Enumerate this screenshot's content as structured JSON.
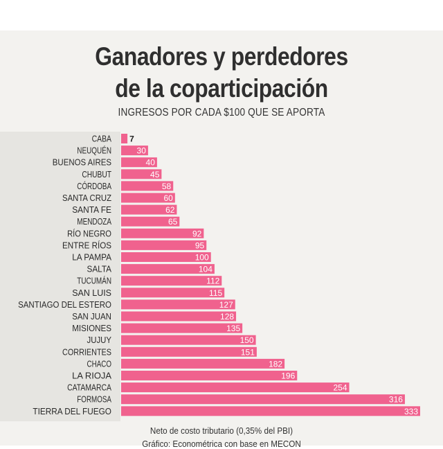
{
  "title_line1": "Ganadores y perdedores",
  "title_line2": "de la coparticipación",
  "subtitle": "INGRESOS POR CADA $100 QUE SE APORTA",
  "footnote": "Neto de costo tributario (0,35% del PBI)",
  "source": "Gráfico: Econométrica con base en MECON",
  "colors": {
    "bar": "#f0628e",
    "label_inside": "#ffffff",
    "label_outside": "#222222"
  },
  "chart_data": {
    "type": "bar",
    "orientation": "horizontal",
    "title": "Ganadores y perdedores de la coparticipación",
    "subtitle": "INGRESOS POR CADA $100 QUE SE APORTA",
    "categories": [
      "CABA",
      "NEUQUÉN",
      "BUENOS AIRES",
      "CHUBUT",
      "CÓRDOBA",
      "SANTA CRUZ",
      "SANTA FE",
      "MENDOZA",
      "RÍO NEGRO",
      "ENTRE RÍOS",
      "LA PAMPA",
      "SALTA",
      "TUCUMÁN",
      "SAN LUIS",
      "SANTIAGO DEL ESTERO",
      "SAN JUAN",
      "MISIONES",
      "JUJUY",
      "CORRIENTES",
      "CHACO",
      "LA RIOJA",
      "CATAMARCA",
      "FORMOSA",
      "TIERRA DEL FUEGO"
    ],
    "values": [
      7,
      30,
      40,
      45,
      58,
      60,
      62,
      65,
      92,
      95,
      100,
      104,
      112,
      115,
      127,
      128,
      135,
      150,
      151,
      182,
      196,
      254,
      316,
      333
    ],
    "data_labels": true,
    "grid": false
  }
}
